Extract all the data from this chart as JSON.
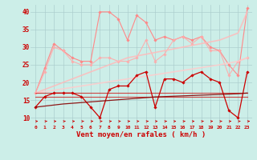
{
  "x": [
    0,
    1,
    2,
    3,
    4,
    5,
    6,
    7,
    8,
    9,
    10,
    11,
    12,
    13,
    14,
    15,
    16,
    17,
    18,
    19,
    20,
    21,
    22,
    23
  ],
  "series": [
    {
      "name": "rafales_high_line",
      "color": "#ff8888",
      "linewidth": 0.8,
      "alpha": 1.0,
      "marker": "D",
      "markersize": 1.8,
      "y": [
        17,
        24,
        31,
        29,
        27,
        26,
        26,
        40,
        40,
        38,
        32,
        39,
        37,
        32,
        33,
        32,
        33,
        32,
        33,
        30,
        29,
        25,
        22,
        41
      ]
    },
    {
      "name": "rafales_mid_line",
      "color": "#ffaaaa",
      "linewidth": 0.8,
      "alpha": 0.9,
      "marker": "D",
      "markersize": 1.8,
      "y": [
        17,
        23,
        30,
        29,
        26,
        25,
        25,
        27,
        27,
        26,
        26,
        27,
        32,
        26,
        28,
        32,
        33,
        31,
        33,
        29,
        29,
        22,
        26,
        27
      ]
    },
    {
      "name": "trend_upper",
      "color": "#ffbbbb",
      "linewidth": 1.2,
      "alpha": 0.85,
      "marker": null,
      "markersize": 0,
      "y": [
        17.0,
        18.0,
        19.0,
        20.0,
        21.0,
        22.0,
        23.0,
        24.0,
        25.0,
        26.0,
        27.0,
        27.5,
        28.0,
        28.5,
        29.0,
        29.5,
        30.0,
        30.5,
        31.0,
        31.5,
        32.0,
        33.0,
        34.0,
        40.0
      ]
    },
    {
      "name": "trend_lower",
      "color": "#ffcccc",
      "linewidth": 1.2,
      "alpha": 0.85,
      "marker": null,
      "markersize": 0,
      "y": [
        17.0,
        17.4,
        17.8,
        18.2,
        18.6,
        19.0,
        19.4,
        19.8,
        20.2,
        20.6,
        21.0,
        21.4,
        21.8,
        22.2,
        22.6,
        23.0,
        23.4,
        23.8,
        24.2,
        24.6,
        25.0,
        25.5,
        26.0,
        27.0
      ]
    },
    {
      "name": "vent_moyen",
      "color": "#cc0000",
      "linewidth": 0.9,
      "alpha": 1.0,
      "marker": "D",
      "markersize": 1.8,
      "y": [
        13,
        16,
        17,
        17,
        17,
        16,
        13,
        10,
        18,
        19,
        19,
        22,
        23,
        13,
        21,
        21,
        20,
        22,
        23,
        21,
        20,
        12,
        10,
        23
      ]
    },
    {
      "name": "flat_upper",
      "color": "#cc0000",
      "linewidth": 0.8,
      "alpha": 0.7,
      "marker": null,
      "markersize": 0,
      "y": [
        17,
        17,
        17,
        17,
        17,
        17,
        17,
        17,
        17,
        17,
        17,
        17,
        17,
        17,
        17,
        17,
        17,
        17,
        17,
        17,
        17,
        17,
        17,
        17
      ]
    },
    {
      "name": "flat_lower",
      "color": "#cc0000",
      "linewidth": 0.8,
      "alpha": 0.7,
      "marker": null,
      "markersize": 0,
      "y": [
        16,
        16,
        16,
        16,
        16,
        16,
        16,
        16,
        16,
        16,
        16,
        16,
        16,
        16,
        16,
        16,
        16,
        16,
        16,
        16,
        16,
        16,
        16,
        16
      ]
    },
    {
      "name": "trend_dark_lower",
      "color": "#880000",
      "linewidth": 0.9,
      "alpha": 0.9,
      "marker": null,
      "markersize": 0,
      "y": [
        13.0,
        13.3,
        13.6,
        13.9,
        14.1,
        14.3,
        14.5,
        14.7,
        14.9,
        15.1,
        15.3,
        15.5,
        15.7,
        15.9,
        16.0,
        16.1,
        16.2,
        16.3,
        16.4,
        16.5,
        16.6,
        16.7,
        16.8,
        17.0
      ]
    }
  ],
  "xlabel": "Vent moyen/en rafales ( km/h )",
  "xlim": [
    -0.5,
    23.5
  ],
  "ylim": [
    8,
    42
  ],
  "yticks": [
    10,
    15,
    20,
    25,
    30,
    35,
    40
  ],
  "xticks": [
    0,
    1,
    2,
    3,
    4,
    5,
    6,
    7,
    8,
    9,
    10,
    11,
    12,
    13,
    14,
    15,
    16,
    17,
    18,
    19,
    20,
    21,
    22,
    23
  ],
  "bg_color": "#cceee8",
  "grid_color": "#aacccc",
  "xlabel_color": "#cc0000",
  "tick_color": "#cc0000",
  "arrow_color": "#cc0000",
  "figsize": [
    3.2,
    2.0
  ],
  "dpi": 100
}
